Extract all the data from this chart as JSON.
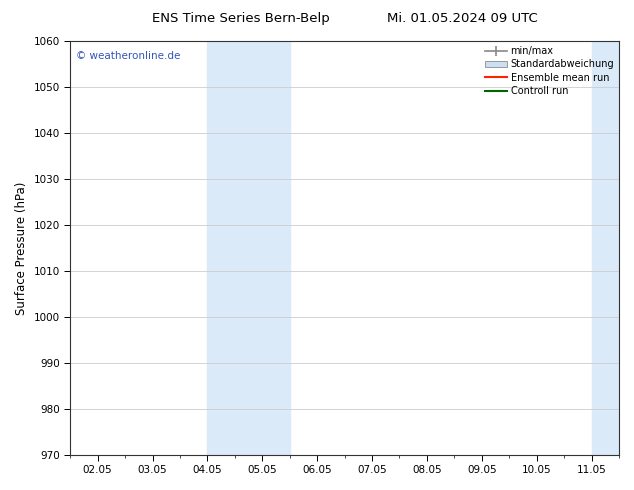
{
  "title_left": "ENS Time Series Bern-Belp",
  "title_right": "Mi. 01.05.2024 09 UTC",
  "ylabel": "Surface Pressure (hPa)",
  "ylim": [
    970,
    1060
  ],
  "yticks": [
    970,
    980,
    990,
    1000,
    1010,
    1020,
    1030,
    1040,
    1050,
    1060
  ],
  "xtick_labels": [
    "02.05",
    "03.05",
    "04.05",
    "05.05",
    "06.05",
    "07.05",
    "08.05",
    "09.05",
    "10.05",
    "11.05"
  ],
  "xtick_positions": [
    2,
    3,
    4,
    5,
    6,
    7,
    8,
    9,
    10,
    11
  ],
  "xlim": [
    1.5,
    11.5
  ],
  "blue_shade_regions": [
    {
      "xmin": 4.0,
      "xmax": 5.5
    },
    {
      "xmin": 11.0,
      "xmax": 11.5
    }
  ],
  "watermark": "© weatheronline.de",
  "watermark_color": "#3355bb",
  "legend_labels": [
    "min/max",
    "Standardabweichung",
    "Ensemble mean run",
    "Controll run"
  ],
  "legend_colors_handle": [
    "#999999",
    "#c8dff0",
    "#ff0000",
    "#007700"
  ],
  "background_color": "#ffffff",
  "spine_color": "#333333",
  "grid_color": "#cccccc",
  "title_fontsize": 9.5,
  "tick_fontsize": 7.5,
  "ylabel_fontsize": 8.5
}
